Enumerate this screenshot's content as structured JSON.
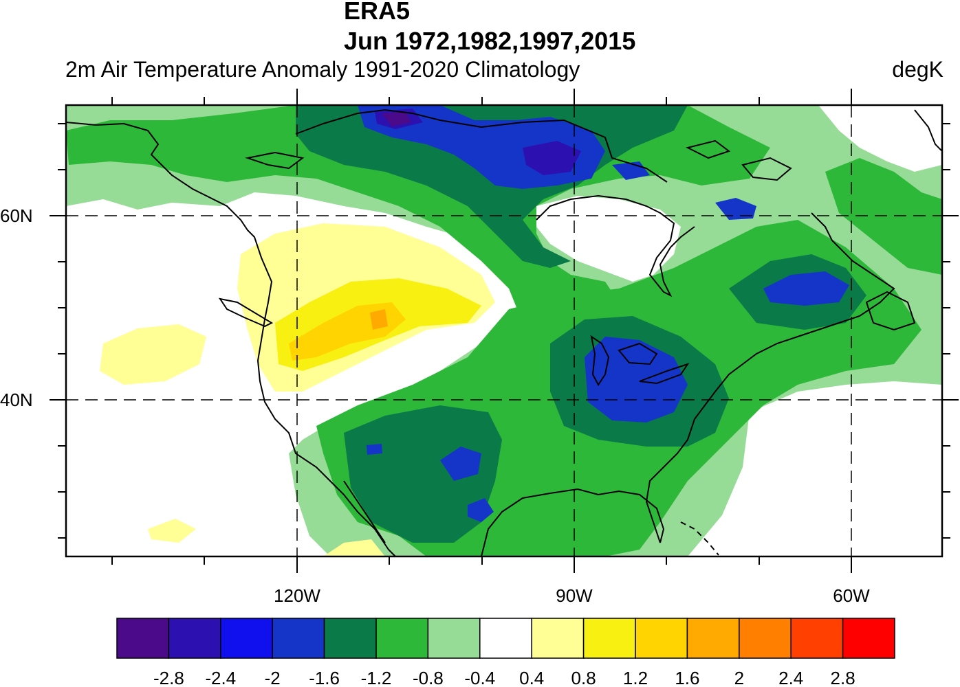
{
  "title_line1": "ERA5",
  "title_line2": "Jun 1972,1982,1997,2015",
  "subtitle_left": "2m Air Temperature Anomaly  1991-2020 Climatology",
  "subtitle_right": "degK",
  "chart_data": {
    "type": "heatmap",
    "variable": "2m Air Temperature Anomaly",
    "units": "degK",
    "lon_range": [
      -145,
      -50
    ],
    "lat_range": [
      24,
      72
    ],
    "xtick_labels": [
      "120W",
      "90W",
      "60W"
    ],
    "ytick_labels": [
      "60N",
      "40N"
    ],
    "grid": "dashed at 120W, 90W, 60W, 60N, 40N",
    "colorbar_levels": [
      "-2.8",
      "-2.4",
      "-2",
      "-1.6",
      "-1.2",
      "-0.8",
      "-0.4",
      "0.4",
      "0.8",
      "1.2",
      "1.6",
      "2",
      "2.4",
      "2.8"
    ],
    "colorbar_colors": [
      "#4a0a8a",
      "#2c10b0",
      "#1010ee",
      "#1535c8",
      "#0a7a48",
      "#2eb83a",
      "#96dc96",
      "#ffffff",
      "#ffff96",
      "#f8f010",
      "#ffd400",
      "#ffaa00",
      "#ff8000",
      "#ff4000",
      "#ff0000"
    ]
  }
}
